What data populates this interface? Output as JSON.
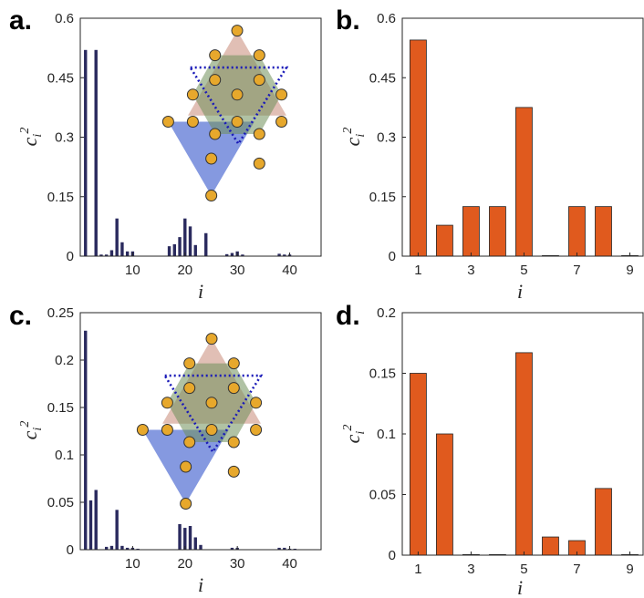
{
  "chart_data": [
    {
      "panel_label": "a.",
      "type": "bar",
      "bar_color": "#2a2a5e",
      "xlabel": "i",
      "ylabel": "ci2",
      "ylabel_main": "c",
      "ylabel_sub": "i",
      "ylabel_sup": "2",
      "xlim": [
        0,
        46
      ],
      "ylim": [
        0,
        0.6
      ],
      "xticks": [
        10,
        20,
        30,
        40
      ],
      "yticks": [
        0,
        0.15,
        0.3,
        0.45,
        0.6
      ],
      "ytick_labels": [
        "0",
        "0.15",
        "0.3",
        "0.45",
        "0.6"
      ],
      "x": [
        1,
        3,
        4,
        5,
        6,
        7,
        8,
        9,
        10,
        17,
        18,
        19,
        20,
        21,
        22,
        24,
        28,
        29,
        30,
        31,
        38,
        39,
        40
      ],
      "values": [
        0.52,
        0.52,
        0.004,
        0.004,
        0.015,
        0.095,
        0.035,
        0.012,
        0.012,
        0.025,
        0.03,
        0.048,
        0.095,
        0.075,
        0.028,
        0.058,
        0.005,
        0.008,
        0.012,
        0.004,
        0.006,
        0.004,
        0.004
      ],
      "inset": "lattice"
    },
    {
      "panel_label": "b.",
      "type": "bar",
      "bar_color": "#e05a1e",
      "xlabel": "i",
      "ylabel": "ci2",
      "ylabel_main": "c",
      "ylabel_sub": "i",
      "ylabel_sup": "2",
      "xlim": [
        0.4,
        9.5
      ],
      "ylim": [
        0,
        0.6
      ],
      "xticks": [
        1,
        3,
        5,
        7,
        9
      ],
      "yticks": [
        0,
        0.15,
        0.3,
        0.45,
        0.6
      ],
      "ytick_labels": [
        "0",
        "0.15",
        "0.3",
        "0.45",
        "0.6"
      ],
      "x": [
        1,
        2,
        3,
        4,
        5,
        6,
        7,
        8,
        9
      ],
      "values": [
        0.545,
        0.078,
        0.125,
        0.125,
        0.375,
        0.001,
        0.125,
        0.125,
        0.0
      ]
    },
    {
      "panel_label": "c.",
      "type": "bar",
      "bar_color": "#2a2a5e",
      "xlabel": "i",
      "ylabel": "ci2",
      "ylabel_main": "c",
      "ylabel_sub": "i",
      "ylabel_sup": "2",
      "xlim": [
        0,
        46
      ],
      "ylim": [
        0,
        0.25
      ],
      "xticks": [
        10,
        20,
        30,
        40
      ],
      "yticks": [
        0,
        0.05,
        0.1,
        0.15,
        0.2,
        0.25
      ],
      "ytick_labels": [
        "0",
        "0.05",
        "0.1",
        "0.15",
        "0.2",
        "0.25"
      ],
      "x": [
        1,
        2,
        3,
        5,
        6,
        7,
        8,
        9,
        10,
        11,
        19,
        20,
        21,
        22,
        23,
        29,
        30,
        38,
        39,
        40,
        41
      ],
      "values": [
        0.231,
        0.052,
        0.063,
        0.003,
        0.004,
        0.042,
        0.004,
        0.002,
        0.002,
        0.001,
        0.027,
        0.023,
        0.025,
        0.013,
        0.005,
        0.002,
        0.002,
        0.002,
        0.002,
        0.001,
        0.001
      ],
      "inset": "lattice"
    },
    {
      "panel_label": "d.",
      "type": "bar",
      "bar_color": "#e05a1e",
      "xlabel": "i",
      "ylabel": "ci2",
      "ylabel_main": "c",
      "ylabel_sub": "i",
      "ylabel_sup": "2",
      "xlim": [
        0.4,
        9.5
      ],
      "ylim": [
        0,
        0.2
      ],
      "xticks": [
        1,
        3,
        5,
        7,
        9
      ],
      "yticks": [
        0,
        0.05,
        0.1,
        0.15,
        0.2
      ],
      "ytick_labels": [
        "0",
        "0.05",
        "0.1",
        "0.15",
        "0.2"
      ],
      "x": [
        1,
        2,
        3,
        4,
        5,
        6,
        7,
        8,
        9
      ],
      "values": [
        0.15,
        0.1,
        0.0005,
        0.0005,
        0.167,
        0.015,
        0.012,
        0.055,
        0.0
      ]
    }
  ]
}
